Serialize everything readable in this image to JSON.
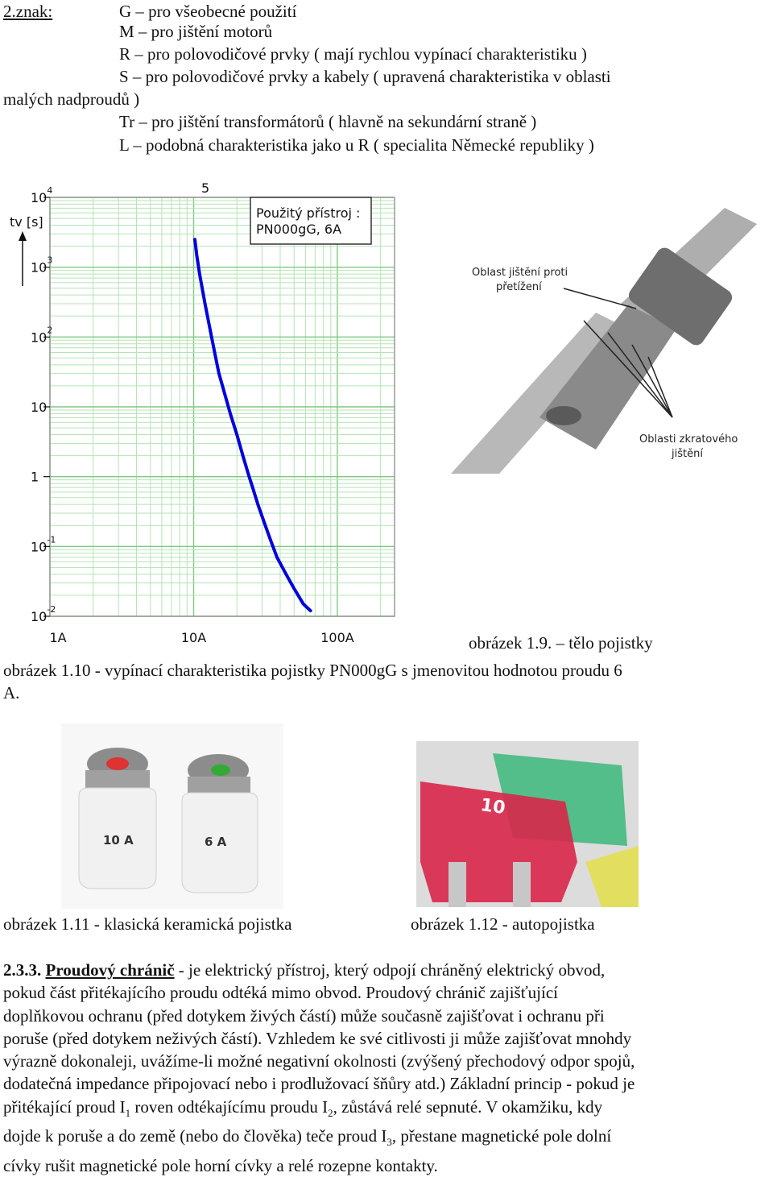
{
  "intro": {
    "heading": "2.znak:",
    "lines": [
      "G – pro všeobecné použití",
      "M – pro jištění motorů",
      "R – pro polovodičové prvky ( mají rychlou vypínací charakteristiku )",
      "S – pro polovodičové prvky a kabely ( upravená charakteristika v oblasti",
      "malých nadproudů )",
      "Tr – pro jištění transformátorů ( hlavně na sekundární straně )",
      "L – podobná charakteristika jako u R ( specialita Německé republiky )"
    ]
  },
  "chart_data": {
    "type": "line",
    "ylabel": "tv [s]",
    "y_scale": "log",
    "x_scale": "log",
    "ylim": [
      0.01,
      10000
    ],
    "xlim": [
      1,
      250
    ],
    "y_ticks": [
      "10^4",
      "10^3",
      "10^2",
      "10",
      "1",
      "10^-1",
      "10^-2"
    ],
    "x_ticks": [
      "1A",
      "10A",
      "100A"
    ],
    "legend_box": [
      "Použitý přístroj :",
      "PN000gG, 6A"
    ],
    "curve_label": "5",
    "grid": true,
    "series": [
      {
        "color": "#0000dd",
        "x": [
          10.2,
          10.5,
          11,
          12,
          13,
          14,
          15,
          16.5,
          18,
          20,
          22,
          24,
          26,
          28,
          31,
          34,
          38,
          44,
          50,
          58,
          65
        ],
        "y": [
          2500,
          1500,
          800,
          300,
          130,
          60,
          30,
          15,
          8,
          4,
          2,
          1.1,
          0.65,
          0.4,
          0.22,
          0.13,
          0.07,
          0.04,
          0.025,
          0.015,
          0.012
        ]
      }
    ]
  },
  "photo_body": {
    "callout_overload": [
      "Oblast jištění proti",
      "přetížení"
    ],
    "callout_short": [
      "Oblasti zkratového",
      "jištění"
    ]
  },
  "fuse_labels": {
    "left": "10 A",
    "right": "6 A"
  },
  "auto_fuse_label": "10",
  "captions": {
    "fig_1_9": "obrázek 1.9. – tělo pojistky",
    "fig_1_10_line1": "obrázek 1.10 - vypínací charakteristika pojistky PN000gG s jmenovitou hodnotou proudu 6",
    "fig_1_10_line2": "A.",
    "fig_1_11": "obrázek 1.11 - klasická keramická pojistka",
    "fig_1_12": "obrázek 1.12 - autopojistka"
  },
  "section": {
    "number": "2.3.3.",
    "title": "Proudový chránič",
    "lines": [
      " - je elektrický přístroj, který odpojí chráněný elektrický obvod,",
      "pokud část přitékajícího proudu odtéká mimo obvod. Proudový chránič zajišťující",
      "doplňkovou ochranu (před dotykem živých částí) může současně zajišťovat i ochranu při",
      "poruše (před dotykem neživých částí). Vzhledem ke své citlivosti ji může zajišťovat mnohdy",
      "výrazně dokonaleji, uvážíme-li možné negativní okolnosti (zvýšený přechodový odpor spojů,",
      "dodatečná impedance připojovací nebo i prodlužovací šňůry atd.) Základní princip - pokud je"
    ],
    "line7_a": "přitékající proud I",
    "line7_sub1": "1",
    "line7_b": " roven odtékajícímu proudu I",
    "line7_sub2": "2",
    "line7_c": ", zůstává relé sepnuté. V okamžiku, kdy",
    "line8_a": "dojde k poruše a do země (nebo do člověka) teče proud I",
    "line8_sub": "3",
    "line8_b": ", přestane magnetické pole dolní",
    "line9": "cívky rušit magnetické pole horní cívky a relé rozepne kontakty."
  }
}
